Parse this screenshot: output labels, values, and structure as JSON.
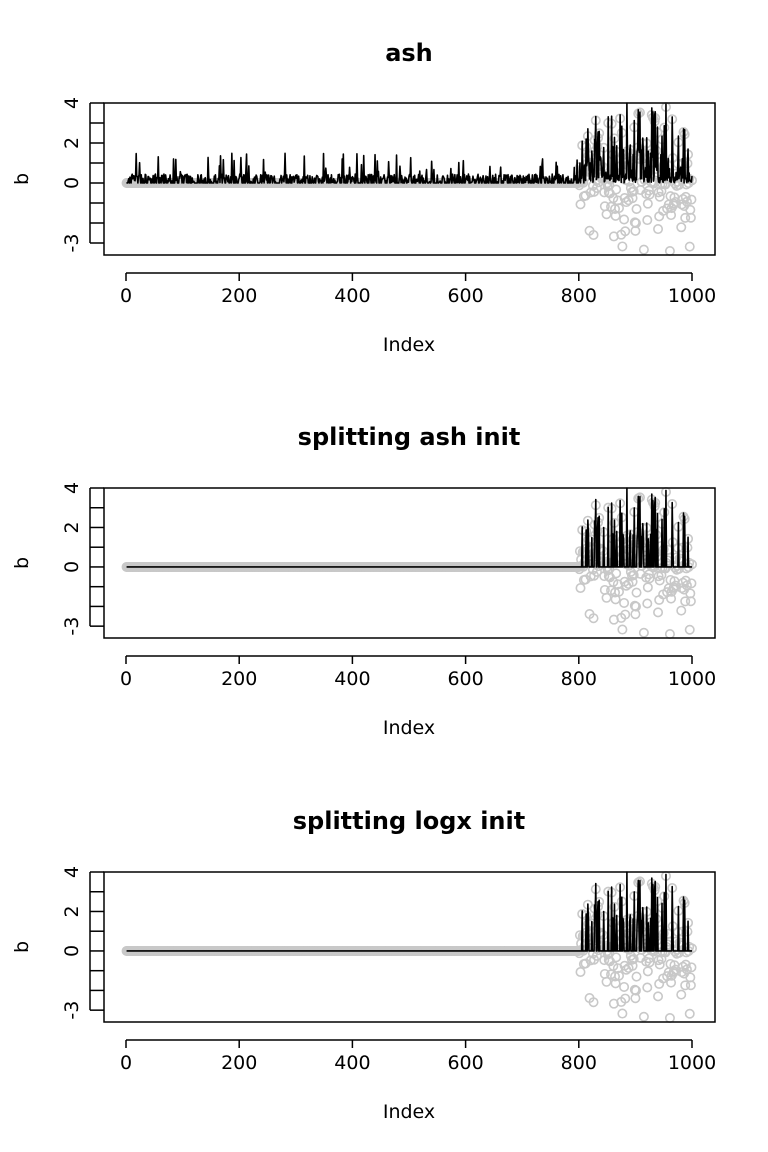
{
  "chart_data": [
    {
      "type": "scatter",
      "title": "ash",
      "xlabel": "Index",
      "ylabel": "b",
      "xlim": [
        0,
        1000
      ],
      "ylim": [
        -3.6,
        4.0
      ],
      "xticks": [
        0,
        200,
        400,
        600,
        800,
        1000
      ],
      "yticks": [
        -3,
        -2,
        -1,
        0,
        1,
        2,
        3,
        4
      ],
      "ytick_labels": [
        "-3",
        "",
        "",
        "0",
        "",
        "2",
        "",
        "4"
      ],
      "grid": false,
      "series": [
        {
          "role": "points",
          "color": "#c8c8c8",
          "rule": "zero for index 1-800, random values roughly in [-3.4, 3.8] for index 801-1000"
        },
        {
          "role": "line",
          "color": "#000000",
          "rule": "noisy estimates 0 to 1.5 for index 1-800, spikes up to 4 for index 801-1000"
        }
      ]
    },
    {
      "type": "scatter",
      "title": "splitting ash init",
      "xlabel": "Index",
      "ylabel": "b",
      "xlim": [
        0,
        1000
      ],
      "ylim": [
        -3.6,
        4.0
      ],
      "xticks": [
        0,
        200,
        400,
        600,
        800,
        1000
      ],
      "yticks": [
        -3,
        -2,
        -1,
        0,
        1,
        2,
        3,
        4
      ],
      "ytick_labels": [
        "-3",
        "",
        "",
        "0",
        "",
        "2",
        "",
        "4"
      ],
      "grid": false,
      "series": [
        {
          "role": "points",
          "color": "#c8c8c8",
          "rule": "zero for index 1-800, random values roughly in [-3.4, 3.8] for index 801-1000"
        },
        {
          "role": "line",
          "color": "#000000",
          "rule": "zero for index 1-800, sparse spikes up to 4 for index 801-1000"
        }
      ]
    },
    {
      "type": "scatter",
      "title": "splitting logx init",
      "xlabel": "Index",
      "ylabel": "b",
      "xlim": [
        0,
        1000
      ],
      "ylim": [
        -3.6,
        4.0
      ],
      "xticks": [
        0,
        200,
        400,
        600,
        800,
        1000
      ],
      "yticks": [
        -3,
        -2,
        -1,
        0,
        1,
        2,
        3,
        4
      ],
      "ytick_labels": [
        "-3",
        "",
        "",
        "0",
        "",
        "2",
        "",
        "4"
      ],
      "grid": false,
      "series": [
        {
          "role": "points",
          "color": "#c8c8c8",
          "rule": "zero for index 1-800, random values roughly in [-3.4, 3.8] for index 801-1000"
        },
        {
          "role": "line",
          "color": "#000000",
          "rule": "zero for index 1-800, sparse spikes up to 4 for index 801-1000"
        }
      ]
    }
  ]
}
